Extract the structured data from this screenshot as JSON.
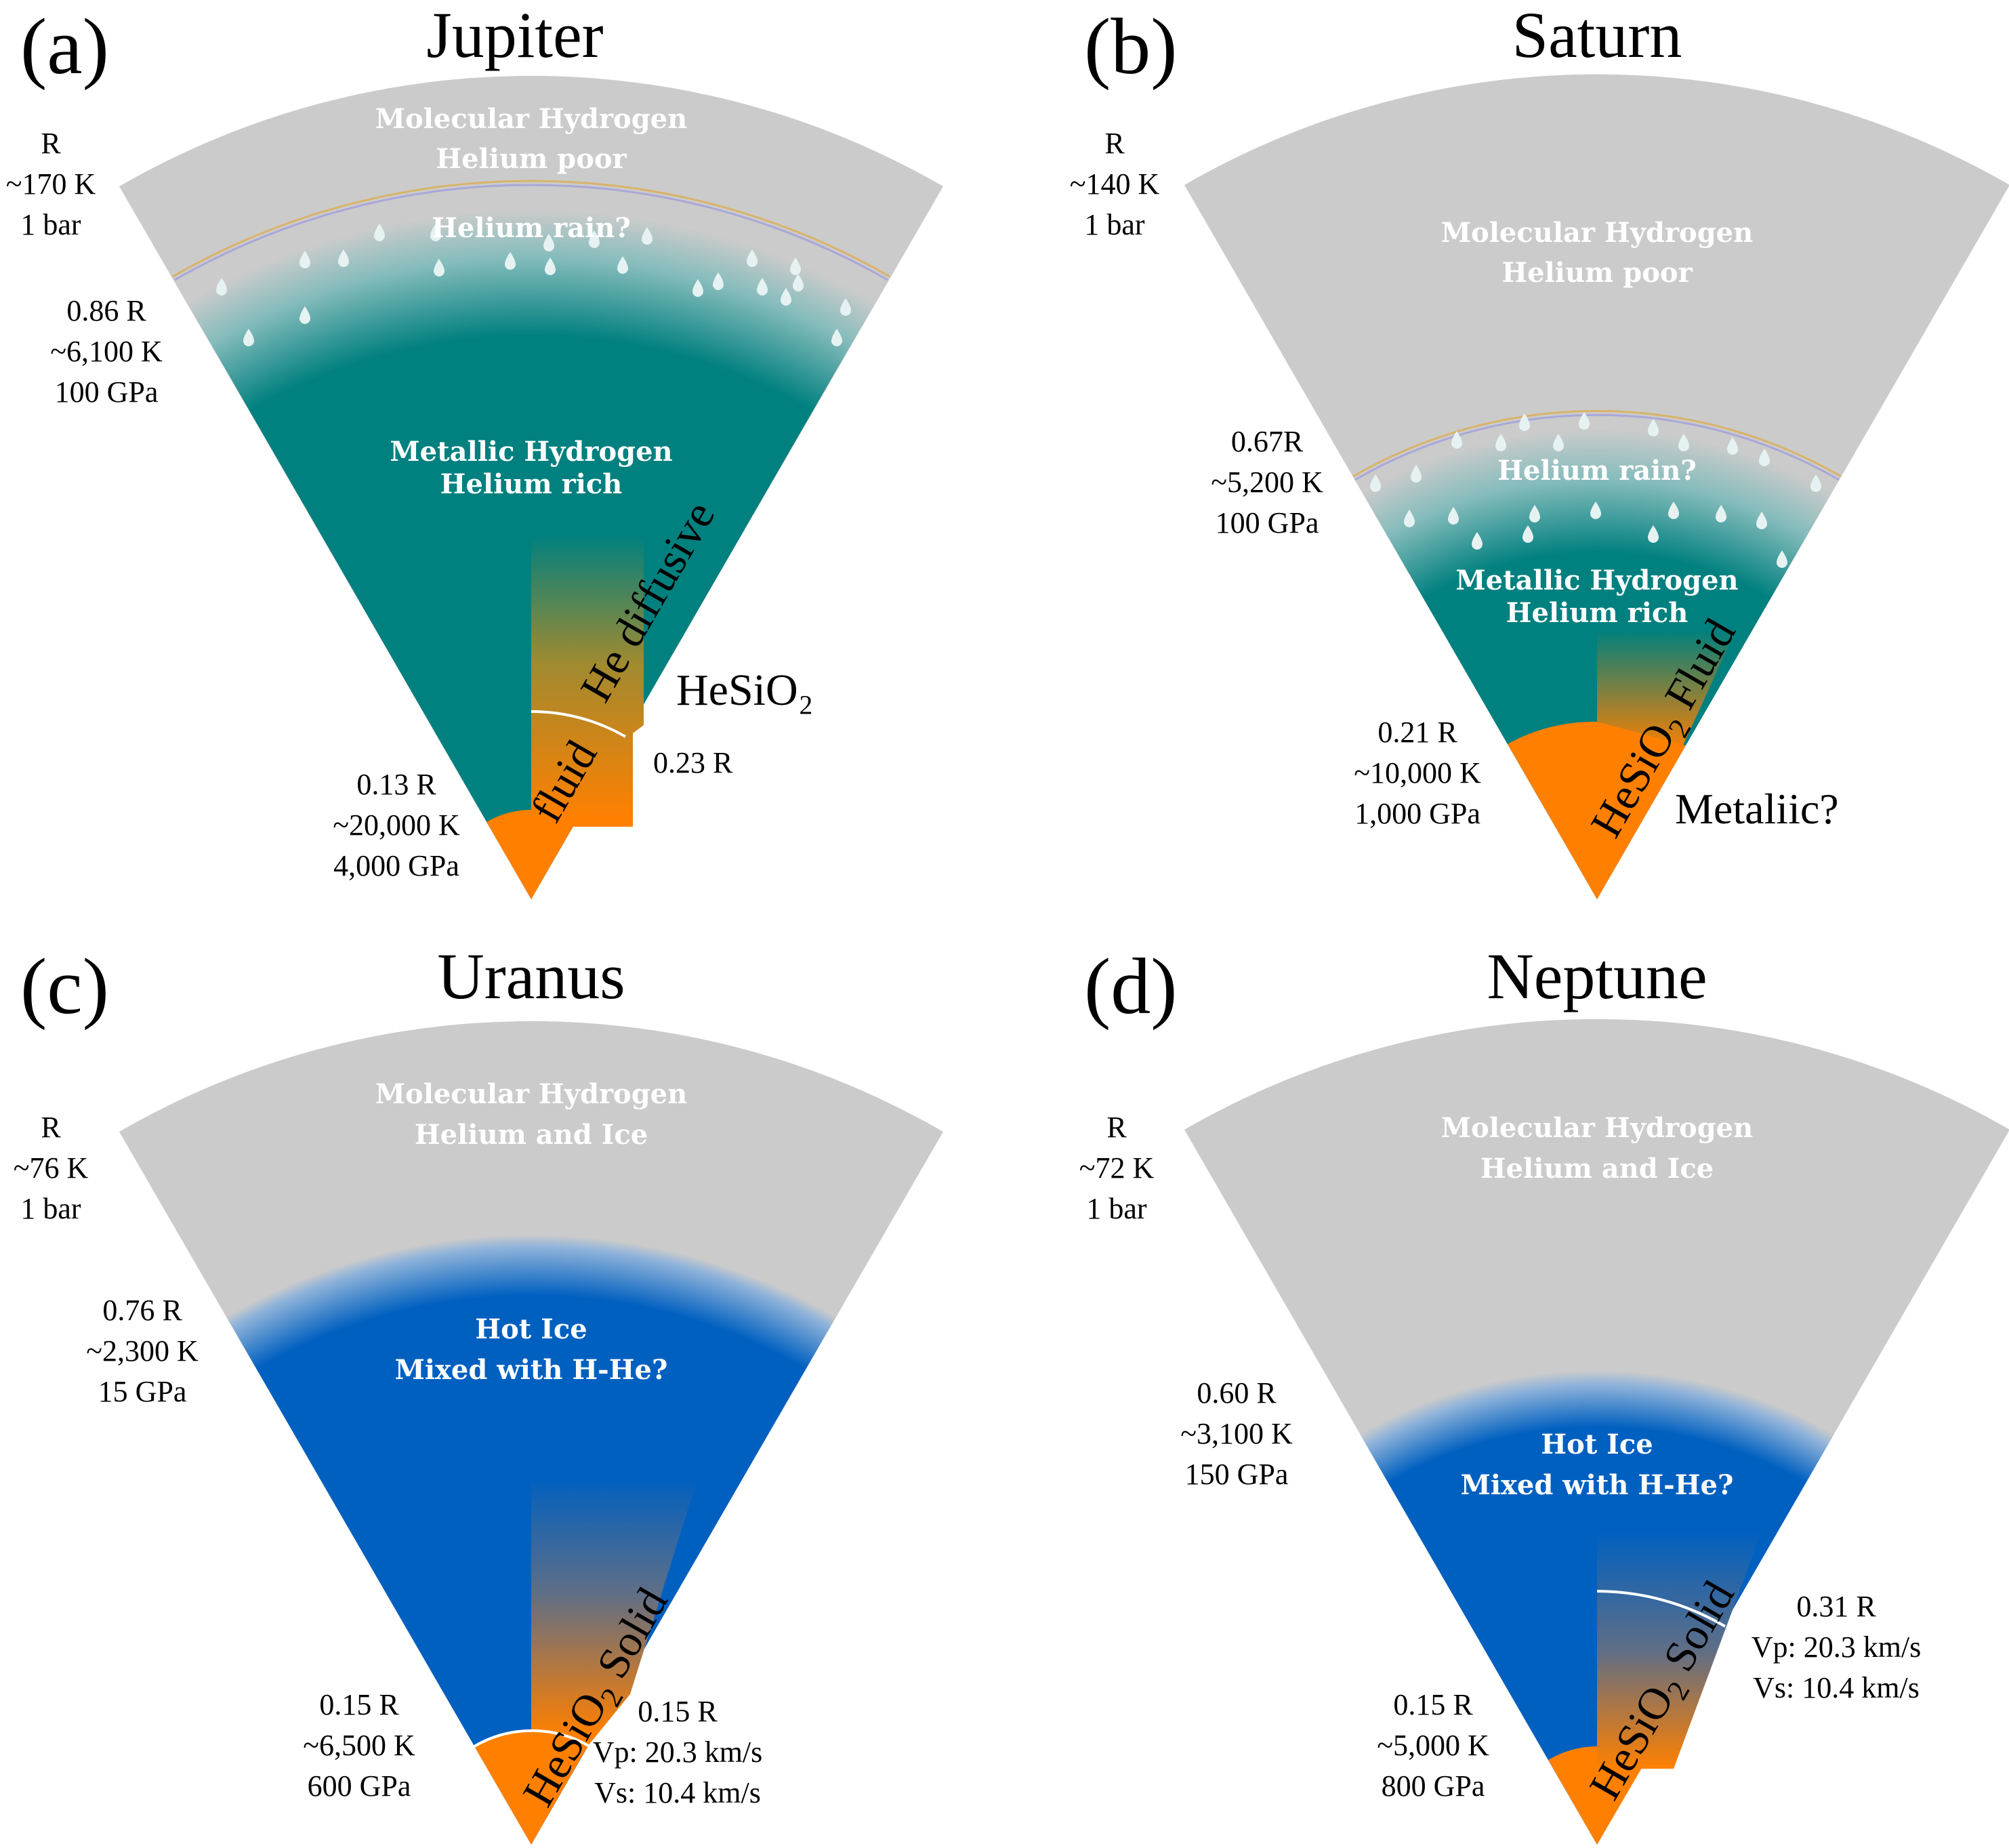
{
  "colors": {
    "molecular": "#cbcbcb",
    "metallic": "#00807f",
    "hot_ice": "#0060c0",
    "core": "#ff8000",
    "rain_drop": "#e6f2f2"
  },
  "panels": [
    {
      "label": "(a)",
      "title": "Jupiter",
      "surface": [
        "R",
        "~170 K",
        "1 bar"
      ],
      "boundary": [
        "0.86 R",
        "~6,100 K",
        "100 GPa"
      ],
      "core": [
        "0.13 R",
        "~20,000 K",
        "4,000 GPa"
      ],
      "layer_outer": [
        "Molecular Hydrogen",
        "Helium poor"
      ],
      "rain": "Helium rain?",
      "layer_inner": [
        "Metallic Hydrogen",
        "Helium rich"
      ],
      "diag_outer": "He diffusive",
      "diag_inner": "fluid",
      "right_label": "HeSiO₂",
      "right_radius": "0.23 R"
    },
    {
      "label": "(b)",
      "title": "Saturn",
      "surface": [
        "R",
        "~140 K",
        "1 bar"
      ],
      "boundary": [
        "0.67R",
        "~5,200 K",
        "100 GPa"
      ],
      "core": [
        "0.21 R",
        "~10,000 K",
        "1,000 GPa"
      ],
      "layer_outer": [
        "Molecular Hydrogen",
        "Helium poor"
      ],
      "rain": "Helium rain?",
      "layer_inner": [
        "Metallic Hydrogen",
        "Helium rich"
      ],
      "diag_main": "HeSiO",
      "diag_sub": "2",
      "diag_tail": " Fluid",
      "right_label": "Metaliic?"
    },
    {
      "label": "(c)",
      "title": "Uranus",
      "surface": [
        "R",
        "~76 K",
        "1 bar"
      ],
      "boundary": [
        "0.76 R",
        "~2,300 K",
        "15 GPa"
      ],
      "core": [
        "0.15 R",
        "~6,500 K",
        "600 GPa"
      ],
      "layer_outer": [
        "Molecular Hydrogen",
        "Helium and Ice"
      ],
      "layer_inner": [
        "Hot Ice",
        "Mixed with H-He?"
      ],
      "diag_main": "HeSiO",
      "diag_sub": "2",
      "diag_tail": " Solid",
      "right_lines": [
        "0.15 R",
        "Vp: 20.3 km/s",
        "Vs: 10.4 km/s"
      ]
    },
    {
      "label": "(d)",
      "title": "Neptune",
      "surface": [
        "R",
        "~72 K",
        "1 bar"
      ],
      "boundary": [
        "0.60 R",
        "~3,100 K",
        "150 GPa"
      ],
      "core": [
        "0.15 R",
        "~5,000 K",
        "800 GPa"
      ],
      "layer_outer": [
        "Molecular Hydrogen",
        "Helium and Ice"
      ],
      "layer_inner": [
        "Hot Ice",
        "Mixed with H-He?"
      ],
      "diag_main": "HeSiO",
      "diag_sub": "2",
      "diag_tail": " Solid",
      "right_lines": [
        "0.31 R",
        "Vp: 20.3 km/s",
        "Vs: 10.4 km/s"
      ]
    }
  ]
}
